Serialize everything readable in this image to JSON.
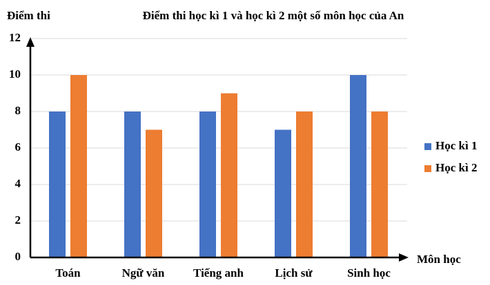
{
  "chart_data": {
    "type": "bar",
    "title": "Điểm thi học kì 1 và học kì 2 một số môn học của An",
    "y_label": "Điểm thi",
    "x_label": "Môn học",
    "categories": [
      "Toán",
      "Ngữ văn",
      "Tiếng anh",
      "Lịch sử",
      "Sinh học"
    ],
    "series": [
      {
        "name": "Học kì 1",
        "color": "#4472c4",
        "values": [
          8,
          8,
          8,
          7,
          10
        ]
      },
      {
        "name": "Học kì 2",
        "color": "#ed7d31",
        "values": [
          10,
          7,
          9,
          8,
          8
        ]
      }
    ],
    "ylim": [
      0,
      12
    ],
    "yticks": [
      0,
      2,
      4,
      6,
      8,
      10,
      12
    ],
    "grid": true,
    "legend": "right"
  }
}
